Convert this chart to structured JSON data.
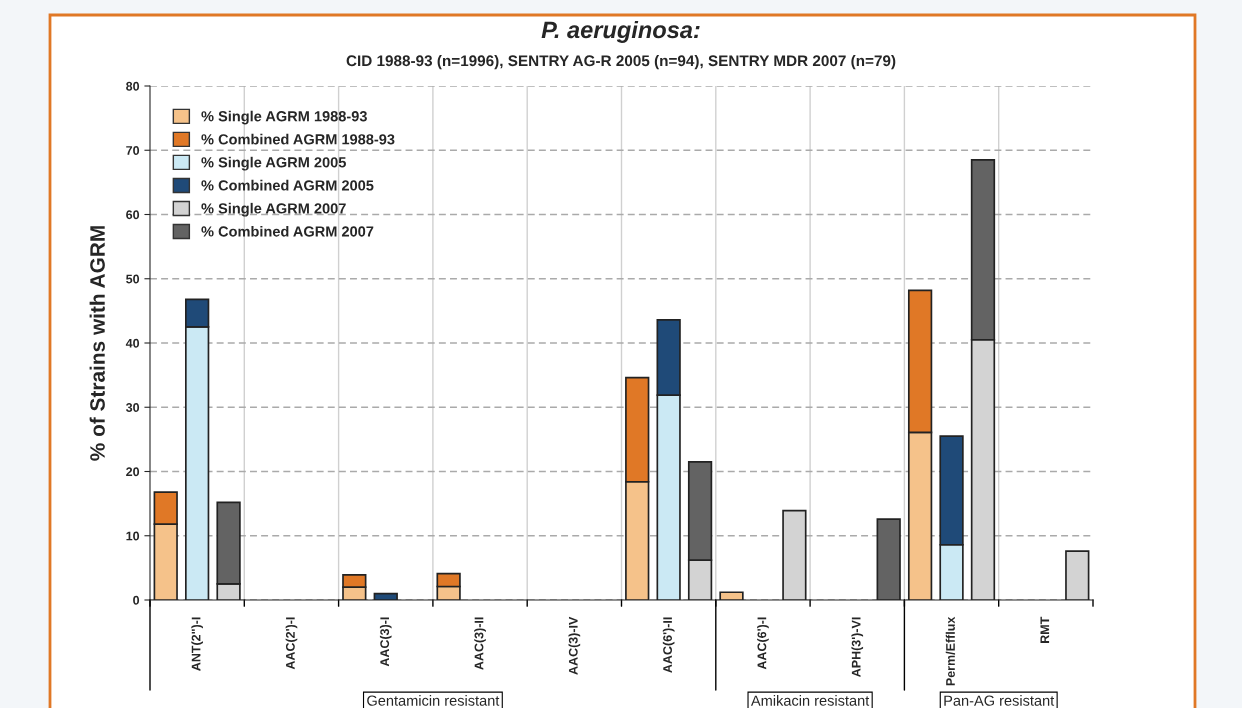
{
  "chart_data": {
    "type": "bar",
    "title": "P. aeruginosa:",
    "subtitle": "CID 1988-93 (n=1996), SENTRY AG-R 2005 (n=94), SENTRY MDR 2007 (n=79)",
    "ylabel": "% of Strains with AGRM",
    "categories": [
      null,
      "ANT(2\")-I",
      null,
      null,
      "AAC(2')-I",
      null,
      null,
      "AAC(3)-I",
      null,
      null,
      "AAC(3)-II",
      null,
      null,
      "AAC(3)-IV",
      null,
      null,
      "AAC(6')-II",
      null,
      null,
      "AAC(6')-I",
      null,
      null,
      "APH(3')-VI",
      null,
      null,
      "Perm/Efflux",
      null,
      null,
      "RMT",
      null
    ],
    "stacked": true,
    "series": [
      {
        "name": "% Single AGRM 1988-93",
        "color": "#f5c28a",
        "values": [
          11.8,
          null,
          null,
          null,
          null,
          null,
          2.0,
          null,
          null,
          2.1,
          null,
          null,
          null,
          null,
          null,
          18.4,
          null,
          null,
          1.2,
          null,
          null,
          null,
          null,
          null,
          26.1,
          null,
          null,
          null,
          null,
          null
        ]
      },
      {
        "name": "% Combined AGRM 1988-93",
        "color": "#e07826",
        "values": [
          5.0,
          null,
          null,
          null,
          null,
          null,
          1.9,
          null,
          null,
          2.0,
          null,
          null,
          null,
          null,
          null,
          16.2,
          null,
          null,
          null,
          null,
          null,
          null,
          null,
          null,
          22.1,
          null,
          null,
          null,
          null,
          null
        ]
      },
      {
        "name": "% Single AGRM 2005",
        "color": "#cbe9f4",
        "values": [
          null,
          42.5,
          null,
          null,
          null,
          null,
          null,
          null,
          null,
          null,
          null,
          null,
          null,
          null,
          null,
          null,
          31.9,
          null,
          null,
          null,
          null,
          null,
          null,
          null,
          null,
          8.6,
          null,
          null,
          null,
          null
        ]
      },
      {
        "name": "% Combined AGRM 2005",
        "color": "#1f4a78",
        "values": [
          null,
          4.3,
          null,
          null,
          null,
          null,
          null,
          1.0,
          null,
          null,
          null,
          null,
          null,
          null,
          null,
          null,
          11.7,
          null,
          null,
          null,
          null,
          null,
          null,
          null,
          null,
          16.9,
          null,
          null,
          null,
          null
        ]
      },
      {
        "name": "% Single AGRM 2007",
        "color": "#d3d3d3",
        "values": [
          null,
          null,
          2.5,
          null,
          null,
          null,
          null,
          null,
          null,
          null,
          null,
          null,
          null,
          null,
          null,
          null,
          null,
          6.2,
          null,
          null,
          13.9,
          null,
          null,
          null,
          null,
          null,
          40.5,
          null,
          null,
          7.6
        ]
      },
      {
        "name": "% Combined AGRM 2007",
        "color": "#636363",
        "values": [
          null,
          null,
          12.7,
          null,
          null,
          null,
          null,
          null,
          null,
          null,
          null,
          null,
          null,
          null,
          null,
          null,
          null,
          15.3,
          null,
          null,
          null,
          null,
          null,
          12.6,
          null,
          null,
          28.0,
          null,
          null,
          null
        ]
      }
    ],
    "ylim": [
      0,
      80
    ],
    "yticks": [
      0,
      10,
      20,
      30,
      40,
      50,
      60,
      70,
      80
    ],
    "grid": true,
    "legend": "top left",
    "annotations": [
      "Gentamicin resistant",
      "Amikacin resistant",
      "Pan-AG resistant"
    ]
  }
}
